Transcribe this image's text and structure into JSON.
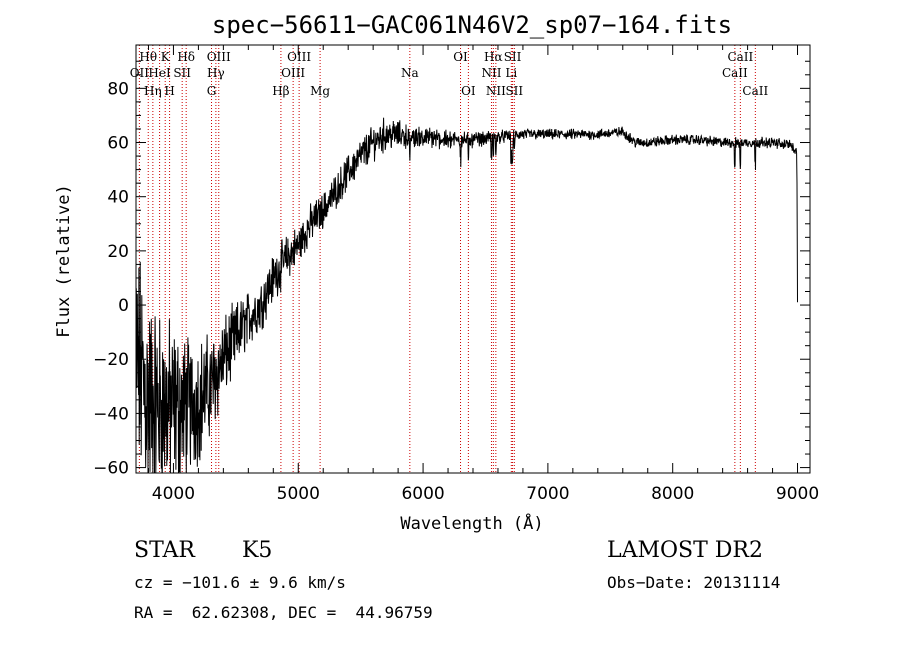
{
  "chart_data": {
    "type": "line",
    "title": "spec−56611−GAC061N46V2_sp07−164.fits",
    "xlabel": "Wavelength (Å)",
    "ylabel": "Flux (relative)",
    "xlim": [
      3700,
      9100
    ],
    "ylim": [
      -62,
      96
    ],
    "xticks": [
      4000,
      5000,
      6000,
      7000,
      8000,
      9000
    ],
    "yticks": [
      -60,
      -40,
      -20,
      0,
      20,
      40,
      60,
      80
    ],
    "grid": false,
    "continuum_anchors": [
      [
        3700,
        -20
      ],
      [
        3800,
        -35
      ],
      [
        3900,
        -38
      ],
      [
        4000,
        -38
      ],
      [
        4100,
        -38
      ],
      [
        4200,
        -35
      ],
      [
        4300,
        -30
      ],
      [
        4400,
        -20
      ],
      [
        4500,
        -12
      ],
      [
        4600,
        -5
      ],
      [
        4700,
        0
      ],
      [
        4800,
        10
      ],
      [
        4900,
        17
      ],
      [
        5000,
        22
      ],
      [
        5100,
        30
      ],
      [
        5200,
        35
      ],
      [
        5300,
        42
      ],
      [
        5400,
        49
      ],
      [
        5500,
        55
      ],
      [
        5600,
        60
      ],
      [
        5700,
        63
      ],
      [
        5800,
        63
      ],
      [
        5900,
        62
      ],
      [
        6000,
        62
      ],
      [
        6200,
        61
      ],
      [
        6400,
        61
      ],
      [
        6600,
        62
      ],
      [
        6800,
        63
      ],
      [
        7000,
        63
      ],
      [
        7200,
        63
      ],
      [
        7400,
        63
      ],
      [
        7600,
        64
      ],
      [
        7700,
        60
      ],
      [
        7800,
        60
      ],
      [
        8000,
        61
      ],
      [
        8200,
        61
      ],
      [
        8400,
        60
      ],
      [
        8600,
        60
      ],
      [
        8800,
        60
      ],
      [
        8950,
        59
      ],
      [
        8990,
        57
      ]
    ],
    "noise_anchors": [
      [
        3700,
        35
      ],
      [
        3800,
        32
      ],
      [
        3900,
        28
      ],
      [
        4000,
        24
      ],
      [
        4200,
        18
      ],
      [
        4400,
        12
      ],
      [
        4600,
        8
      ],
      [
        4800,
        7
      ],
      [
        5000,
        6
      ],
      [
        5200,
        5
      ],
      [
        5500,
        5
      ],
      [
        5700,
        5
      ],
      [
        5800,
        4
      ],
      [
        6000,
        3
      ],
      [
        6500,
        2
      ],
      [
        7000,
        1.5
      ],
      [
        8000,
        1.5
      ],
      [
        9000,
        1.5
      ]
    ],
    "final_drop": [
      [
        8993,
        56
      ],
      [
        8996,
        45
      ],
      [
        8998,
        20
      ],
      [
        9000,
        1
      ]
    ],
    "spectral_lines": [
      {
        "label": "Hθ",
        "x": 3798,
        "row": 1
      },
      {
        "label": "OII",
        "x": 3727,
        "row": 2
      },
      {
        "label": "Hη",
        "x": 3835,
        "row": 3
      },
      {
        "label": "HeI",
        "x": 3889,
        "row": 2
      },
      {
        "label": "K",
        "x": 3934,
        "row": 1
      },
      {
        "label": "H",
        "x": 3969,
        "row": 3
      },
      {
        "label": "SII",
        "x": 4070,
        "row": 2
      },
      {
        "label": "Hδ",
        "x": 4102,
        "row": 1
      },
      {
        "label": "G",
        "x": 4305,
        "row": 3
      },
      {
        "label": "Hγ",
        "x": 4340,
        "row": 2
      },
      {
        "label": "OIII",
        "x": 4363,
        "row": 1
      },
      {
        "label": "Hβ",
        "x": 4861,
        "row": 3
      },
      {
        "label": "OIII",
        "x": 4959,
        "row": 2
      },
      {
        "label": "OIII",
        "x": 5007,
        "row": 1
      },
      {
        "label": "Mg",
        "x": 5175,
        "row": 3
      },
      {
        "label": "Na",
        "x": 5894,
        "row": 2
      },
      {
        "label": "OI",
        "x": 6300,
        "row": 1
      },
      {
        "label": "OI",
        "x": 6363,
        "row": 3
      },
      {
        "label": "NII",
        "x": 6548,
        "row": 2
      },
      {
        "label": "Hα",
        "x": 6563,
        "row": 1
      },
      {
        "label": "NII",
        "x": 6583,
        "row": 3
      },
      {
        "label": "SII",
        "x": 6717,
        "row": 1
      },
      {
        "label": "Li",
        "x": 6707,
        "row": 2
      },
      {
        "label": "SII",
        "x": 6731,
        "row": 3
      },
      {
        "label": "CaII",
        "x": 8498,
        "row": 2
      },
      {
        "label": "CaII",
        "x": 8542,
        "row": 1
      },
      {
        "label": "CaII",
        "x": 8662,
        "row": 3
      }
    ],
    "line_color": "#000000",
    "marker_color": "#cc0000"
  },
  "info": {
    "class": "STAR",
    "subclass": "K5",
    "survey": "LAMOST DR2",
    "cz": "cz = −101.6 ± 9.6 km/s",
    "obsdate": "Obs−Date: 20131114",
    "radec": "RA =  62.62308, DEC =  44.96759"
  }
}
